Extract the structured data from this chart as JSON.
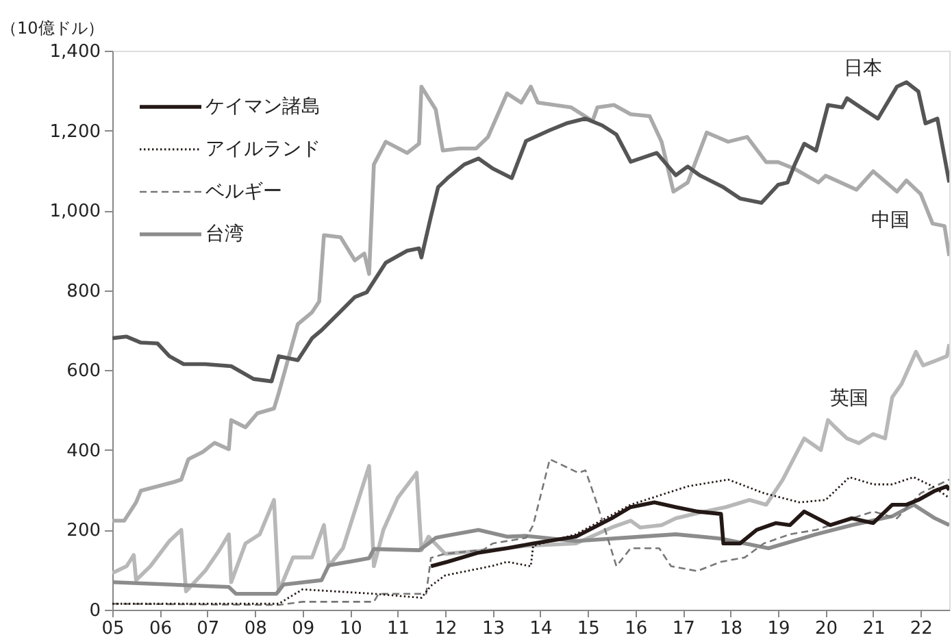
{
  "chart_data": {
    "type": "line",
    "ylabel": "（10億ドル）",
    "legend": "top left",
    "grid": false,
    "xlim": [
      2005,
      2022.6
    ],
    "ylim": [
      0,
      1400
    ],
    "xticks": [
      {
        "value": 2005,
        "label": "05"
      },
      {
        "value": 2006,
        "label": "06"
      },
      {
        "value": 2007,
        "label": "07"
      },
      {
        "value": 2008,
        "label": "08"
      },
      {
        "value": 2009,
        "label": "09"
      },
      {
        "value": 2010,
        "label": "10"
      },
      {
        "value": 2011,
        "label": "11"
      },
      {
        "value": 2012,
        "label": "12"
      },
      {
        "value": 2013,
        "label": "13"
      },
      {
        "value": 2014,
        "label": "14"
      },
      {
        "value": 2015,
        "label": "15"
      },
      {
        "value": 2016,
        "label": "16"
      },
      {
        "value": 2017,
        "label": "17"
      },
      {
        "value": 2018,
        "label": "18"
      },
      {
        "value": 2019,
        "label": "19"
      },
      {
        "value": 2020,
        "label": "20"
      },
      {
        "value": 2021,
        "label": "21"
      },
      {
        "value": 2022,
        "label": "22"
      }
    ],
    "yticks": [
      0,
      200,
      400,
      600,
      800,
      {
        "value": 1000,
        "label": "1,000"
      },
      {
        "value": 1200,
        "label": "1,200"
      },
      {
        "value": 1400,
        "label": "1,400"
      }
    ],
    "annotations": [
      "日本",
      "中国",
      "英国"
    ],
    "series": [
      {
        "color": "#aaaaaa",
        "line_style": "solid",
        "x": [
          2005.0,
          2005.25,
          2005.5,
          2005.6,
          2006.3,
          2006.45,
          2006.6,
          2006.9,
          2007.15,
          2007.45,
          2007.5,
          2007.8,
          2008.05,
          2008.4,
          2008.5,
          2008.9,
          2009.2,
          2009.35,
          2009.45,
          2009.8,
          2010.1,
          2010.3,
          2010.4,
          2010.5,
          2010.75,
          2011.2,
          2011.45,
          2011.5,
          2011.8,
          2011.95,
          2012.3,
          2012.65,
          2012.9,
          2013.3,
          2013.6,
          2013.8,
          2013.95,
          2014.65,
          2015.1,
          2015.2,
          2015.55,
          2015.9,
          2016.3,
          2016.55,
          2016.8,
          2017.1,
          2017.5,
          2017.95,
          2018.35,
          2018.75,
          2019.0,
          2019.35,
          2019.85,
          2020.0,
          2020.65,
          2021.0,
          2021.5,
          2021.7,
          2022.0,
          2022.25,
          2022.5,
          2022.6
        ],
        "values": [
          223,
          223,
          269,
          298,
          320,
          326,
          377,
          395,
          418,
          402,
          475,
          457,
          492,
          504,
          543,
          715,
          745,
          772,
          938,
          933,
          875,
          892,
          841,
          1115,
          1172,
          1144,
          1167,
          1310,
          1253,
          1150,
          1155,
          1155,
          1184,
          1293,
          1270,
          1310,
          1270,
          1258,
          1224,
          1258,
          1264,
          1241,
          1236,
          1172,
          1047,
          1070,
          1195,
          1172,
          1184,
          1121,
          1121,
          1104,
          1070,
          1087,
          1052,
          1098,
          1047,
          1075,
          1041,
          967,
          961,
          886
        ]
      },
      {
        "color": "#b8b8b8",
        "line_style": "solid",
        "x": [
          2005.0,
          2005.3,
          2005.45,
          2005.5,
          2005.8,
          2006.2,
          2006.45,
          2006.55,
          2006.95,
          2007.25,
          2007.45,
          2007.5,
          2007.8,
          2008.1,
          2008.4,
          2008.5,
          2008.8,
          2009.2,
          2009.45,
          2009.55,
          2009.85,
          2010.4,
          2010.5,
          2010.7,
          2011.0,
          2011.4,
          2011.5,
          2011.65,
          2012.0,
          2013.0,
          2013.7,
          2014.75,
          2015.5,
          2015.9,
          2016.1,
          2016.55,
          2016.85,
          2017.45,
          2017.9,
          2018.4,
          2018.75,
          2019.1,
          2019.4,
          2019.55,
          2019.9,
          2020.05,
          2020.2,
          2020.45,
          2020.7,
          2021.0,
          2021.25,
          2021.4,
          2021.6,
          2021.9,
          2022.05,
          2022.3,
          2022.55,
          2022.6
        ],
        "values": [
          92,
          109,
          137,
          74,
          109,
          172,
          200,
          46,
          97,
          149,
          189,
          69,
          166,
          189,
          275,
          46,
          131,
          131,
          212,
          109,
          154,
          360,
          109,
          200,
          280,
          343,
          149,
          183,
          140,
          150,
          160,
          166,
          206,
          223,
          206,
          212,
          229,
          246,
          257,
          275,
          263,
          326,
          395,
          429,
          400,
          475,
          457,
          429,
          417,
          440,
          429,
          532,
          566,
          646,
          612,
          623,
          635,
          665
        ]
      },
      {
        "name": "台湾",
        "color": "#8c8c8c",
        "line_style": "solid",
        "x": [
          2005.0,
          2007.45,
          2007.6,
          2008.45,
          2008.6,
          2009.4,
          2009.55,
          2010.4,
          2010.5,
          2011.45,
          2011.65,
          2011.8,
          2012.0,
          2012.7,
          2013.3,
          2013.7,
          2014.75,
          2016.1,
          2016.85,
          2017.8,
          2018.8,
          2019.8,
          2020.55,
          2021.4,
          2021.85,
          2022.3,
          2022.6
        ],
        "values": [
          69,
          57,
          40,
          40,
          63,
          74,
          111,
          129,
          152,
          149,
          166,
          180,
          185,
          200,
          183,
          185,
          172,
          183,
          189,
          178,
          154,
          189,
          212,
          234,
          263,
          229,
          212
        ]
      },
      {
        "color": "#555555",
        "line_style": "solid",
        "x": [
          2005.0,
          2005.3,
          2005.6,
          2005.95,
          2006.2,
          2006.5,
          2006.95,
          2007.5,
          2007.97,
          2008.35,
          2008.5,
          2008.9,
          2009.2,
          2009.4,
          2009.75,
          2010.1,
          2010.35,
          2010.75,
          2011.2,
          2011.45,
          2011.5,
          2011.7,
          2011.85,
          2012.05,
          2012.4,
          2012.7,
          2013.0,
          2013.4,
          2013.7,
          2014.2,
          2014.55,
          2014.95,
          2015.3,
          2015.6,
          2015.9,
          2016.45,
          2016.85,
          2017.1,
          2017.35,
          2017.85,
          2018.2,
          2018.65,
          2019.0,
          2019.2,
          2019.35,
          2019.55,
          2019.8,
          2020.05,
          2020.35,
          2020.45,
          2020.8,
          2021.1,
          2021.5,
          2021.7,
          2021.95,
          2022.1,
          2022.35,
          2022.6
        ],
        "values": [
          680,
          684,
          669,
          667,
          635,
          615,
          615,
          610,
          578,
          572,
          635,
          625,
          680,
          700,
          741,
          783,
          795,
          869,
          899,
          905,
          882,
          985,
          1058,
          1081,
          1115,
          1130,
          1105,
          1081,
          1174,
          1201,
          1218,
          1230,
          1213,
          1190,
          1122,
          1144,
          1088,
          1110,
          1088,
          1058,
          1030,
          1019,
          1064,
          1070,
          1115,
          1167,
          1150,
          1264,
          1258,
          1281,
          1253,
          1230,
          1310,
          1321,
          1298,
          1218,
          1230,
          1070
        ]
      },
      {
        "name": "ベルギー",
        "color": "#777777",
        "line_style": "dashed",
        "x": [
          2005.0,
          2008.5,
          2009.0,
          2010.5,
          2010.6,
          2011.6,
          2011.7,
          2012.0,
          2012.8,
          2013.0,
          2013.7,
          2013.85,
          2014.2,
          2014.8,
          2014.95,
          2015.2,
          2015.6,
          2015.9,
          2016.5,
          2016.75,
          2017.3,
          2017.8,
          2018.3,
          2018.7,
          2019.25,
          2019.8,
          2021.0,
          2021.5,
          2022.0,
          2022.6
        ],
        "values": [
          15,
          12,
          20,
          20,
          40,
          40,
          130,
          140,
          150,
          166,
          180,
          212,
          377,
          343,
          349,
          263,
          109,
          154,
          154,
          109,
          97,
          120,
          131,
          166,
          189,
          200,
          246,
          229,
          292,
          326
        ]
      },
      {
        "name": "アイルランド",
        "color": "#231815",
        "line_style": "dotted",
        "x": [
          2005.0,
          2008.5,
          2009.0,
          2010.5,
          2011.5,
          2011.7,
          2012.0,
          2013.0,
          2013.3,
          2013.8,
          2013.85,
          2014.75,
          2015.9,
          2017.1,
          2017.95,
          2018.7,
          2019.45,
          2020.0,
          2020.5,
          2021.0,
          2021.4,
          2021.85,
          2022.25,
          2022.6
        ],
        "values": [
          15,
          15,
          51,
          40,
          30,
          60,
          86,
          110,
          120,
          109,
          160,
          189,
          263,
          309,
          326,
          292,
          269,
          275,
          332,
          314,
          314,
          332,
          309,
          280
        ]
      },
      {
        "name": "ケイマン諸島",
        "color": "#231815",
        "line_style": "solid",
        "x": [
          2011.7,
          2012.05,
          2012.7,
          2013.3,
          2013.85,
          2014.75,
          2015.5,
          2015.9,
          2016.4,
          2016.85,
          2017.3,
          2017.8,
          2017.85,
          2018.2,
          2018.55,
          2018.95,
          2019.25,
          2019.55,
          2020.1,
          2020.55,
          2021.0,
          2021.4,
          2021.7,
          2021.95,
          2022.3,
          2022.55,
          2022.6
        ],
        "values": [
          109,
          120,
          143,
          154,
          166,
          183,
          229,
          257,
          269,
          257,
          246,
          240,
          166,
          166,
          200,
          217,
          212,
          246,
          212,
          229,
          217,
          263,
          263,
          275,
          298,
          309,
          300
        ]
      }
    ]
  }
}
